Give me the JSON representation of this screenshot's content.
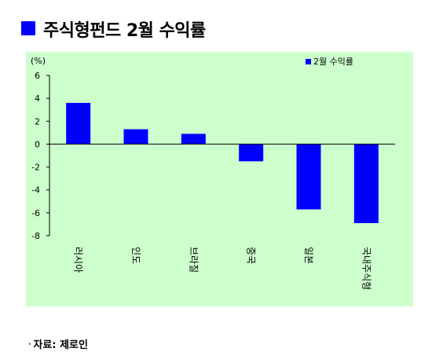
{
  "title": "주식형펀드 2월 수익률",
  "source": "자료: 제로인",
  "source_bullet": "·",
  "colors": {
    "bar": "#0000ff",
    "panel": "#ccffcc",
    "title_marker": "#0000ff"
  },
  "chart_data": {
    "type": "bar",
    "categories": [
      "러시아",
      "인도",
      "브라질",
      "중국",
      "일본",
      "국내주식형"
    ],
    "series": [
      {
        "name": "2월 수익률",
        "values": [
          3.6,
          1.3,
          0.9,
          -1.5,
          -5.7,
          -6.9
        ]
      }
    ],
    "unit_label": "(%)",
    "ylim": [
      -8,
      6
    ],
    "yticks": [
      6,
      4,
      2,
      0,
      -2,
      -4,
      -6,
      -8
    ],
    "grid": false,
    "legend_position": "top-right"
  }
}
